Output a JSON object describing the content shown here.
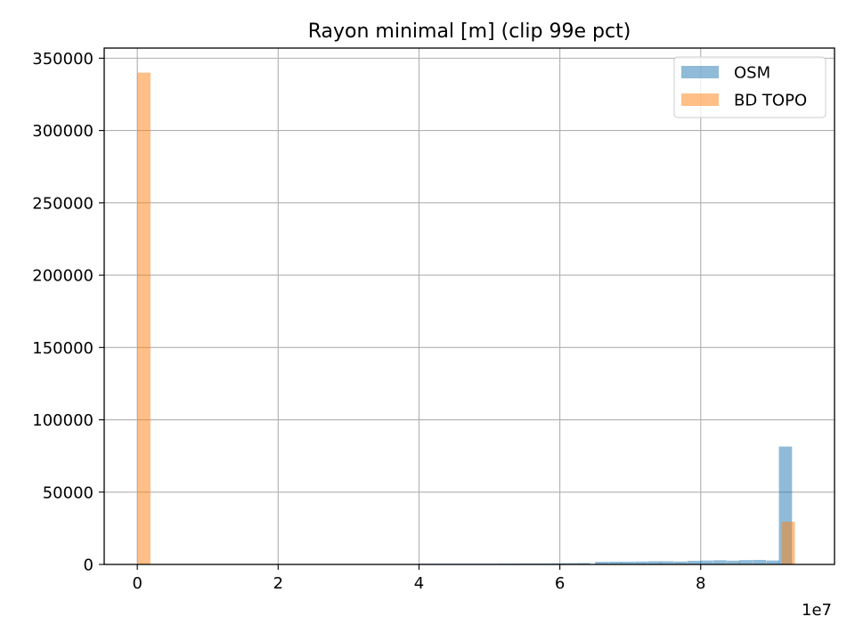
{
  "chart_data": {
    "type": "bar",
    "title": "Rayon minimal [m] (clip 99e pct)",
    "xlabel": "",
    "ylabel": "",
    "x_offset_label": "1e7",
    "xlim": [
      -0.47,
      9.9
    ],
    "ylim": [
      0,
      357000
    ],
    "x_ticks": [
      0,
      2,
      4,
      6,
      8
    ],
    "y_ticks": [
      0,
      50000,
      100000,
      150000,
      200000,
      250000,
      300000,
      350000
    ],
    "grid": true,
    "legend": {
      "position": "top-right",
      "entries": [
        "OSM",
        "BD TOPO"
      ]
    },
    "bin_width": 0.187,
    "series": [
      {
        "name": "OSM",
        "color": "#1f77b4",
        "alpha": 0.5,
        "bins": [
          {
            "x0": 4.0,
            "value": 500
          },
          {
            "x0": 4.19,
            "value": 500
          },
          {
            "x0": 4.37,
            "value": 500
          },
          {
            "x0": 4.56,
            "value": 500
          },
          {
            "x0": 4.75,
            "value": 500
          },
          {
            "x0": 4.93,
            "value": 500
          },
          {
            "x0": 5.12,
            "value": 600
          },
          {
            "x0": 5.31,
            "value": 600
          },
          {
            "x0": 5.49,
            "value": 700
          },
          {
            "x0": 5.68,
            "value": 700
          },
          {
            "x0": 5.87,
            "value": 800
          },
          {
            "x0": 6.05,
            "value": 900
          },
          {
            "x0": 6.24,
            "value": 1000
          },
          {
            "x0": 6.5,
            "value": 1800
          },
          {
            "x0": 6.69,
            "value": 1900
          },
          {
            "x0": 6.87,
            "value": 1900
          },
          {
            "x0": 7.06,
            "value": 2000
          },
          {
            "x0": 7.25,
            "value": 2200
          },
          {
            "x0": 7.43,
            "value": 2200
          },
          {
            "x0": 7.62,
            "value": 2000
          },
          {
            "x0": 7.81,
            "value": 2500
          },
          {
            "x0": 7.99,
            "value": 2700
          },
          {
            "x0": 8.18,
            "value": 2900
          },
          {
            "x0": 8.37,
            "value": 2600
          },
          {
            "x0": 8.55,
            "value": 3000
          },
          {
            "x0": 8.74,
            "value": 3100
          },
          {
            "x0": 8.93,
            "value": 2700
          },
          {
            "x0": 9.11,
            "value": 81500
          }
        ]
      },
      {
        "name": "BD TOPO",
        "color": "#ff7f0e",
        "alpha": 0.5,
        "bins": [
          {
            "x0": 0.0,
            "value": 340000
          },
          {
            "x0": 9.15,
            "value": 29500
          }
        ]
      }
    ]
  }
}
